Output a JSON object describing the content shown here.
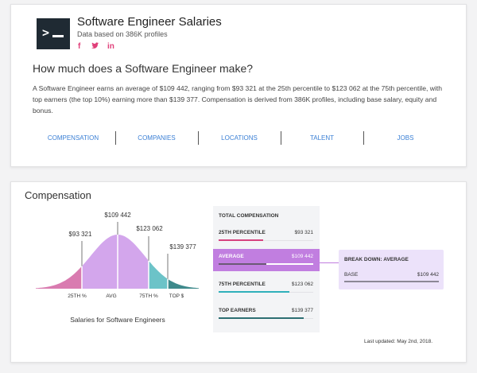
{
  "header": {
    "title": "Software Engineer Salaries",
    "subtitle": "Data based on 386K profiles",
    "logo_icon": "terminal-icon",
    "social": [
      "f",
      "t",
      "in"
    ]
  },
  "question": "How much does a Software Engineer make?",
  "description": "A Software Engineer earns an average of $109 442, ranging from $93 321 at the 25th percentile to $123 062 at the 75th percentile, with top earners (the top 10%) earning more than $139 377. Compensation is derived from 386K profiles, including base salary, equity and bonus.",
  "nav": [
    "COMPENSATION",
    "COMPANIES",
    "LOCATIONS",
    "TALENT",
    "JOBS"
  ],
  "compensation": {
    "title": "Compensation",
    "chart": {
      "values": {
        "p25": "$93 321",
        "avg": "$109 442",
        "p75": "$123 062",
        "top": "$139 377"
      },
      "ticks": {
        "p25": "25TH %",
        "avg": "AVG",
        "p75": "75TH %",
        "top": "TOP $"
      },
      "caption": "Salaries for Software Engineers",
      "colors": {
        "p25": "#d97bb0",
        "mid": "#d3a6ec",
        "p75": "#6cc3c8",
        "top": "#3f8a8c"
      }
    },
    "panel": {
      "title": "TOTAL COMPENSATION",
      "rows": [
        {
          "label": "25TH PERCENTILE",
          "value": "$93 321",
          "fill": 0.47,
          "color": "#d6437f"
        },
        {
          "label": "AVERAGE",
          "value": "$109 442",
          "fill": 0.5,
          "color": "#6b5a74"
        },
        {
          "label": "75TH PERCENTILE",
          "value": "$123 062",
          "fill": 0.75,
          "color": "#2fb0ba"
        },
        {
          "label": "TOP EARNERS",
          "value": "$139 377",
          "fill": 0.9,
          "color": "#2d6f73"
        }
      ]
    },
    "breakdown": {
      "title": "BREAK DOWN: AVERAGE",
      "label": "BASE",
      "value": "$109 442"
    },
    "updated": "Last updated: May 2nd, 2018."
  }
}
